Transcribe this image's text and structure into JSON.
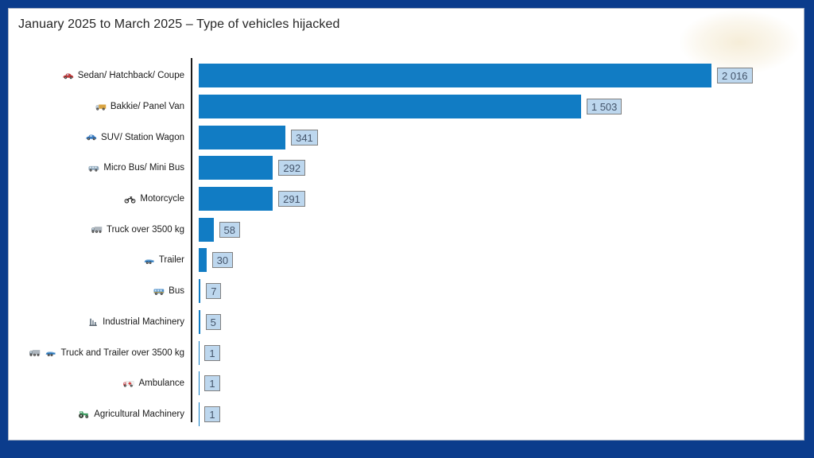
{
  "page": {
    "title": "January 2025 to March 2025 – Type of vehicles hijacked"
  },
  "colors": {
    "border_navy": "#0B3C8C",
    "bar_blue": "#117CC4",
    "axis_black": "#1a1a1a",
    "value_box_bg": "#BDD7EE",
    "value_box_border": "#808080",
    "value_text": "#44546A",
    "title_text": "#262626"
  },
  "chart_data": {
    "type": "bar",
    "orientation": "horizontal",
    "title": "January 2025 to March 2025 – Type of vehicles hijacked",
    "xlabel": "",
    "ylabel": "",
    "xlim": [
      0,
      2100
    ],
    "grid": false,
    "legend": false,
    "value_label_style": "boxed-light-blue",
    "categories": [
      "Sedan/ Hatchback/ Coupe",
      "Bakkie/ Panel Van",
      "SUV/ Station Wagon",
      "Micro Bus/ Mini Bus",
      "Motorcycle",
      "Truck over 3500 kg",
      "Trailer",
      "Bus",
      "Industrial Machinery",
      "Truck and Trailer over 3500 kg",
      "Ambulance",
      "Agricultural Machinery"
    ],
    "values": [
      2016,
      1503,
      341,
      292,
      291,
      58,
      30,
      7,
      5,
      1,
      1,
      1
    ],
    "value_labels": [
      "2 016",
      "1 503",
      "341",
      "292",
      "291",
      "58",
      "30",
      "7",
      "5",
      "1",
      "1",
      "1"
    ],
    "icons": [
      [
        "sedan-icon"
      ],
      [
        "panel-van-icon"
      ],
      [
        "suv-icon"
      ],
      [
        "minibus-icon"
      ],
      [
        "motorcycle-icon"
      ],
      [
        "truck-icon"
      ],
      [
        "trailer-icon"
      ],
      [
        "bus-icon"
      ],
      [
        "industrial-machinery-icon"
      ],
      [
        "truck-icon",
        "trailer-icon"
      ],
      [
        "ambulance-icon"
      ],
      [
        "tractor-icon"
      ]
    ]
  }
}
